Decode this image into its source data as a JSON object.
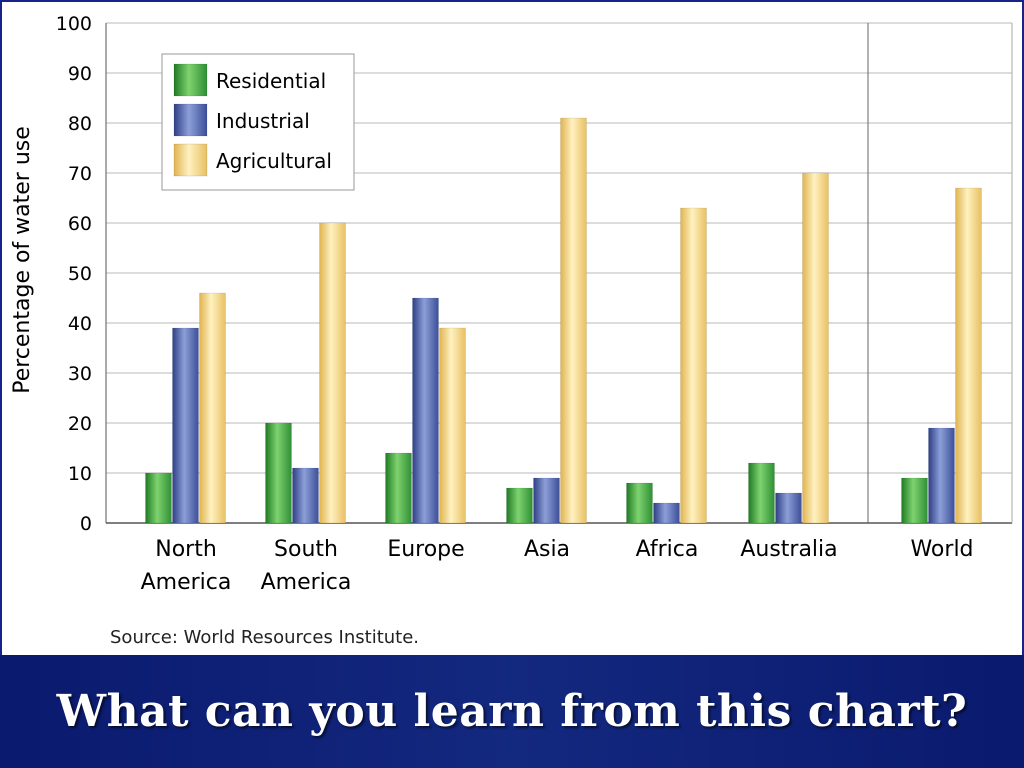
{
  "slide": {
    "caption": "What can you learn from this chart?"
  },
  "chart_data": {
    "type": "bar",
    "title": "",
    "xlabel": "",
    "ylabel": "Percentage of water use",
    "ylim": [
      0,
      100
    ],
    "yticks": [
      0,
      10,
      20,
      30,
      40,
      50,
      60,
      70,
      80,
      90,
      100
    ],
    "grid": true,
    "legend_position": "top-left",
    "categories": [
      [
        "North",
        "America"
      ],
      [
        "South",
        "America"
      ],
      [
        "Europe"
      ],
      [
        "Asia"
      ],
      [
        "Africa"
      ],
      [
        "Australia"
      ],
      [
        "World"
      ]
    ],
    "separator_before_category": 6,
    "series": [
      {
        "name": "Residential",
        "color": "#3fa33f",
        "values": [
          10,
          20,
          14,
          7,
          8,
          12,
          9
        ]
      },
      {
        "name": "Industrial",
        "color": "#5a6fb4",
        "values": [
          39,
          11,
          45,
          9,
          4,
          6,
          19
        ]
      },
      {
        "name": "Agricultural",
        "color": "#f5d37a",
        "values": [
          46,
          60,
          39,
          81,
          63,
          70,
          67
        ]
      }
    ],
    "source": "Source: World Resources Institute."
  }
}
